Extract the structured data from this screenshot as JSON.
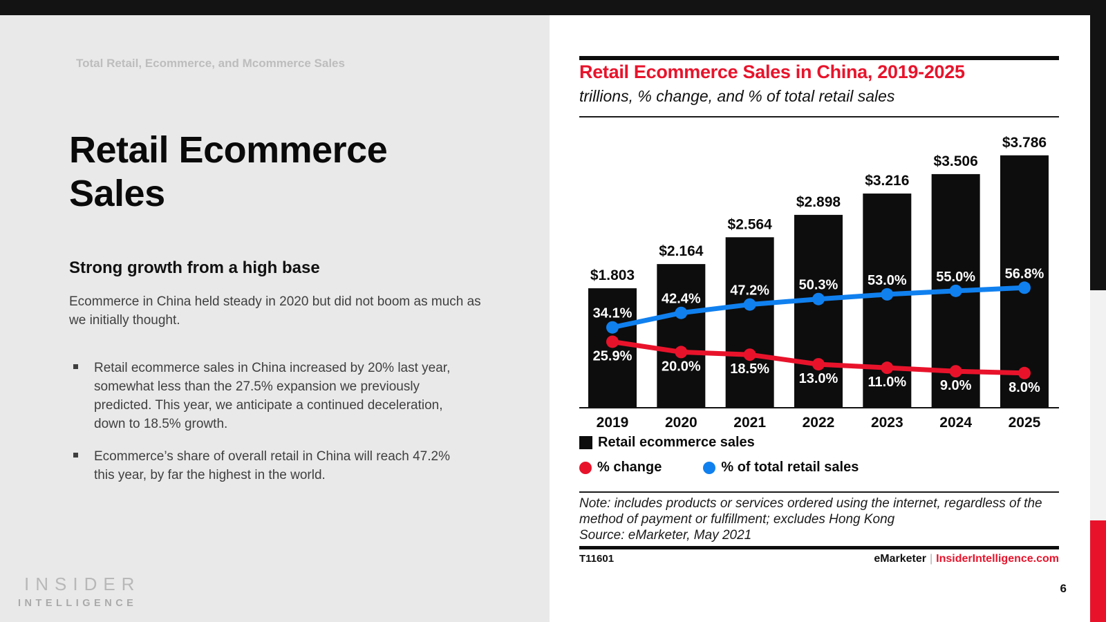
{
  "page": {
    "number": "6"
  },
  "left_panel": {
    "eyebrow": "Total Retail, Ecommerce, and Mcommerce Sales",
    "title": "Retail Ecommerce Sales",
    "subtitle": "Strong growth from a high base",
    "intro": "Ecommerce in China held steady in 2020 but did not boom as much as we initially thought.",
    "bullets": [
      "Retail ecommerce sales in China increased by 20% last year, somewhat less than the 27.5% expansion we previously predicted. This year, we anticipate a continued deceleration, down to 18.5% growth.",
      "Ecommerce’s share of overall retail in China will reach 47.2% this year, by far the highest in the world."
    ],
    "logo_line1": "INSIDER",
    "logo_line2": "INTELLIGENCE"
  },
  "chart": {
    "title": "Retail Ecommerce Sales in China, 2019-2025",
    "subtitle": "trillions, % change, and % of total retail sales",
    "note": "Note: includes products or services ordered using the internet, regardless of the method of payment or fulfillment; excludes Hong Kong",
    "source": "Source: eMarketer, May 2021",
    "table_id": "T11601",
    "footer_brand": "eMarketer",
    "footer_separator": "|",
    "footer_site": "InsiderIntelligence.com"
  },
  "colors": {
    "accent_red": "#e8132b",
    "accent_blue": "#1080ef",
    "bar_black": "#0d0d0d"
  },
  "chart_data": {
    "type": "bar",
    "title": "Retail Ecommerce Sales in China, 2019-2025",
    "subtitle": "trillions, % change, and % of total retail sales",
    "categories": [
      "2019",
      "2020",
      "2021",
      "2022",
      "2023",
      "2024",
      "2025"
    ],
    "series": [
      {
        "name": "Retail ecommerce sales",
        "type": "bar",
        "color": "#0d0d0d",
        "unit": "trillions USD",
        "values": [
          1.803,
          2.164,
          2.564,
          2.898,
          3.216,
          3.506,
          3.786
        ],
        "labels": [
          "$1.803",
          "$2.164",
          "$2.564",
          "$2.898",
          "$3.216",
          "$3.506",
          "$3.786"
        ]
      },
      {
        "name": "% change",
        "type": "line",
        "color": "#e8132b",
        "label_position": "below",
        "values": [
          25.9,
          20.0,
          18.5,
          13.0,
          11.0,
          9.0,
          8.0
        ],
        "labels": [
          "25.9%",
          "20.0%",
          "18.5%",
          "13.0%",
          "11.0%",
          "9.0%",
          "8.0%"
        ]
      },
      {
        "name": "% of total retail sales",
        "type": "line",
        "color": "#1080ef",
        "label_position": "above",
        "values": [
          34.1,
          42.4,
          47.2,
          50.3,
          53.0,
          55.0,
          56.8
        ],
        "labels": [
          "34.1%",
          "42.4%",
          "47.2%",
          "50.3%",
          "53.0%",
          "55.0%",
          "56.8%"
        ]
      }
    ],
    "xlabel": "",
    "ylabel": "",
    "grid": false,
    "legend_position": "bottom"
  }
}
